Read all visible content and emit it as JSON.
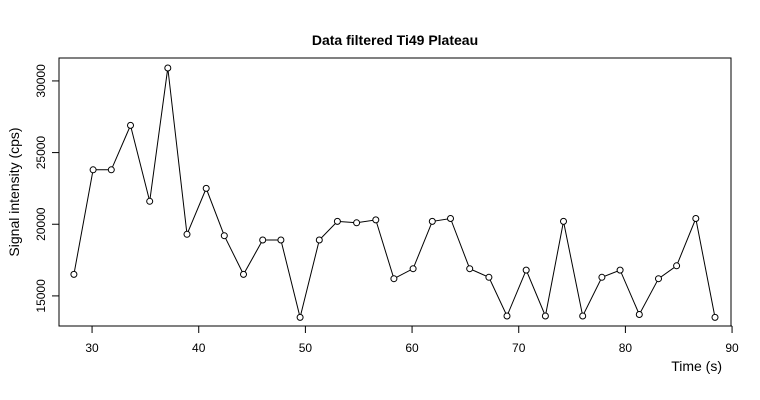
{
  "chart_data": {
    "type": "line",
    "title": "Data filtered Ti49 Plateau",
    "xlabel": "Time (s)",
    "ylabel": "Signal intensity (cps)",
    "xlim": [
      26.9,
      89.9
    ],
    "ylim": [
      12900,
      31600
    ],
    "xticks": [
      30,
      40,
      50,
      60,
      70,
      80,
      90
    ],
    "yticks": [
      15000,
      20000,
      25000,
      30000
    ],
    "markers": "open-circle",
    "line_color": "#000000",
    "grid": false,
    "legend": "none",
    "x": [
      28.3,
      30.1,
      31.8,
      33.6,
      35.4,
      37.1,
      38.9,
      40.7,
      42.4,
      44.2,
      46.0,
      47.7,
      49.5,
      51.3,
      53.0,
      54.8,
      56.6,
      58.3,
      60.1,
      61.9,
      63.6,
      65.4,
      67.2,
      68.9,
      70.7,
      72.5,
      74.2,
      76.0,
      77.8,
      79.5,
      81.3,
      83.1,
      84.8,
      86.6,
      88.4
    ],
    "y": [
      16500,
      23800,
      23800,
      26900,
      21600,
      30900,
      19300,
      22500,
      19200,
      16500,
      18900,
      18900,
      13500,
      18900,
      20200,
      20100,
      20300,
      16200,
      16900,
      20200,
      20400,
      16900,
      16300,
      13600,
      16800,
      13600,
      20200,
      13600,
      16300,
      16800,
      13700,
      16200,
      17100,
      20400,
      13500
    ]
  }
}
